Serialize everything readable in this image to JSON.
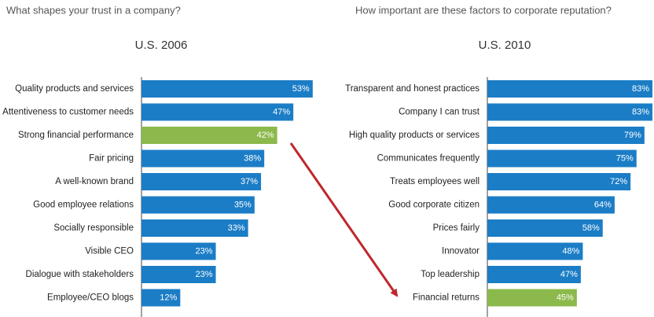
{
  "chart_data": [
    {
      "type": "bar",
      "orientation": "horizontal",
      "title": "What shapes your trust in a company?",
      "subtitle": "U.S. 2006",
      "categories": [
        "Quality products and services",
        "Attentiveness to customer needs",
        "Strong financial performance",
        "Fair pricing",
        "A well-known brand",
        "Good employee relations",
        "Socially responsible",
        "Visible CEO",
        "Dialogue with stakeholders",
        "Employee/CEO blogs"
      ],
      "values": [
        53,
        47,
        42,
        38,
        37,
        35,
        33,
        23,
        23,
        12
      ],
      "value_labels": [
        "53%",
        "47%",
        "42%",
        "38%",
        "37%",
        "35%",
        "33%",
        "23%",
        "23%",
        "12%"
      ],
      "colors": [
        "#1b7dc6",
        "#1b7dc6",
        "#8cb94b",
        "#1b7dc6",
        "#1b7dc6",
        "#1b7dc6",
        "#1b7dc6",
        "#1b7dc6",
        "#1b7dc6",
        "#1b7dc6"
      ]
    },
    {
      "type": "bar",
      "orientation": "horizontal",
      "title": "How important are these factors to corporate reputation?",
      "subtitle": "U.S. 2010",
      "categories": [
        "Transparent and honest practices",
        "Company I can trust",
        "High quality products or services",
        "Communicates frequently",
        "Treats employees well",
        "Good corporate citizen",
        "Prices fairly",
        "Innovator",
        "Top leadership",
        "Financial returns"
      ],
      "values": [
        83,
        83,
        79,
        75,
        72,
        64,
        58,
        48,
        47,
        45
      ],
      "value_labels": [
        "83%",
        "83%",
        "79%",
        "75%",
        "72%",
        "64%",
        "58%",
        "48%",
        "47%",
        "45%"
      ],
      "colors": [
        "#1b7dc6",
        "#1b7dc6",
        "#1b7dc6",
        "#1b7dc6",
        "#1b7dc6",
        "#1b7dc6",
        "#1b7dc6",
        "#1b7dc6",
        "#1b7dc6",
        "#8cb94b"
      ]
    }
  ]
}
